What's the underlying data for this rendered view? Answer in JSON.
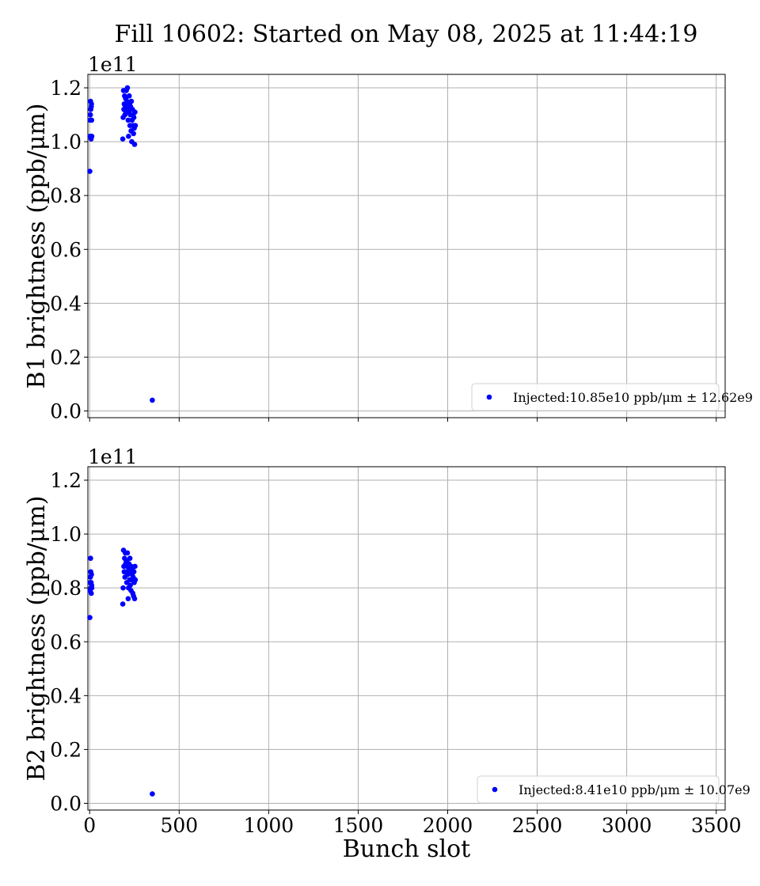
{
  "title": "Fill 10602: Started on May 08, 2025 at 11:44:19",
  "colors": {
    "marker": "#0000ff",
    "grid": "#b0b0b0",
    "axis": "#000000"
  },
  "chart_data": [
    {
      "type": "scatter",
      "ylabel": "B1 brightness (ppb/μm)",
      "offset_text": "1e11",
      "xlim": [
        -10,
        3550
      ],
      "ylim": [
        -0.025,
        1.25
      ],
      "xticks": [
        0,
        500,
        1000,
        1500,
        2000,
        2500,
        3000,
        3500
      ],
      "yticks": [
        0.0,
        0.2,
        0.4,
        0.6,
        0.8,
        1.0,
        1.2
      ],
      "ytick_labels": [
        "0.0",
        "0.2",
        "0.4",
        "0.6",
        "0.8",
        "1.0",
        "1.2"
      ],
      "grid": true,
      "legend_position": "lower-right",
      "series": [
        {
          "name": "Injected:10.85e10 ppb/μm ± 12.62e9",
          "x": [
            1,
            2,
            3,
            4,
            5,
            6,
            7,
            8,
            9,
            10,
            11,
            12,
            185,
            187,
            189,
            191,
            193,
            195,
            197,
            199,
            201,
            203,
            205,
            207,
            209,
            211,
            213,
            215,
            217,
            219,
            221,
            223,
            225,
            227,
            229,
            231,
            233,
            235,
            237,
            239,
            241,
            243,
            245,
            247,
            249,
            251,
            253,
            255,
            350
          ],
          "y": [
            0.89,
            1.02,
            1.08,
            1.1,
            1.15,
            1.12,
            1.08,
            1.01,
            1.13,
            1.14,
            1.08,
            1.02,
            1.01,
            1.09,
            1.19,
            1.12,
            1.14,
            1.17,
            1.1,
            1.13,
            1.16,
            1.11,
            1.19,
            1.13,
            1.15,
            1.2,
            1.12,
            1.08,
            1.02,
            1.11,
            1.17,
            1.14,
            1.06,
            1.1,
            1.13,
            1.04,
            1.15,
            1.0,
            1.08,
            1.12,
            1.06,
            1.1,
            1.03,
            1.09,
            1.05,
            0.99,
            1.11,
            1.06,
            0.04
          ]
        }
      ]
    },
    {
      "type": "scatter",
      "ylabel": "B2 brightness (ppb/μm)",
      "offset_text": "1e11",
      "xlabel": "Bunch slot",
      "xlim": [
        -10,
        3550
      ],
      "ylim": [
        -0.025,
        1.25
      ],
      "xticks": [
        0,
        500,
        1000,
        1500,
        2000,
        2500,
        3000,
        3500
      ],
      "xtick_labels": [
        "0",
        "500",
        "1000",
        "1500",
        "2000",
        "2500",
        "3000",
        "3500"
      ],
      "yticks": [
        0.0,
        0.2,
        0.4,
        0.6,
        0.8,
        1.0,
        1.2
      ],
      "ytick_labels": [
        "0.0",
        "0.2",
        "0.4",
        "0.6",
        "0.8",
        "1.0",
        "1.2"
      ],
      "grid": true,
      "legend_position": "lower-right",
      "series": [
        {
          "name": "Injected:8.41e10 ppb/μm ± 10.07e9",
          "x": [
            1,
            2,
            3,
            4,
            5,
            6,
            7,
            8,
            9,
            10,
            11,
            12,
            185,
            187,
            189,
            191,
            193,
            195,
            197,
            199,
            201,
            203,
            205,
            207,
            209,
            211,
            213,
            215,
            217,
            219,
            221,
            223,
            225,
            227,
            229,
            231,
            233,
            235,
            237,
            239,
            241,
            243,
            245,
            247,
            249,
            251,
            253,
            255,
            350
          ],
          "y": [
            0.69,
            0.79,
            0.82,
            0.84,
            0.91,
            0.86,
            0.8,
            0.82,
            0.78,
            0.85,
            0.81,
            0.8,
            0.74,
            0.8,
            0.94,
            0.88,
            0.86,
            0.91,
            0.84,
            0.93,
            0.89,
            0.86,
            0.9,
            0.82,
            0.88,
            0.93,
            0.85,
            0.76,
            0.8,
            0.89,
            0.87,
            0.83,
            0.91,
            0.81,
            0.86,
            0.79,
            0.88,
            0.83,
            0.85,
            0.87,
            0.78,
            0.84,
            0.77,
            0.86,
            0.82,
            0.76,
            0.88,
            0.83,
            0.035
          ]
        }
      ]
    }
  ]
}
